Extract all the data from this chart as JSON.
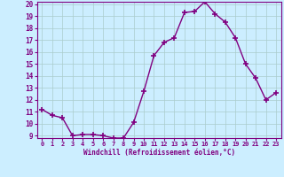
{
  "x": [
    0,
    1,
    2,
    3,
    4,
    5,
    6,
    7,
    8,
    9,
    10,
    11,
    12,
    13,
    14,
    15,
    16,
    17,
    18,
    19,
    20,
    21,
    22,
    23
  ],
  "y": [
    11.2,
    10.7,
    10.5,
    9.0,
    9.1,
    9.1,
    9.0,
    8.8,
    8.8,
    10.1,
    12.7,
    15.7,
    16.8,
    17.2,
    19.3,
    19.4,
    20.2,
    19.2,
    18.5,
    17.2,
    15.0,
    13.8,
    12.0,
    12.6
  ],
  "color": "#800080",
  "bg_color": "#cceeff",
  "grid_color": "#aacccc",
  "xlabel": "Windchill (Refroidissement éolien,°C)",
  "ylim": [
    9,
    20
  ],
  "xlim": [
    -0.5,
    23.5
  ],
  "yticks": [
    9,
    10,
    11,
    12,
    13,
    14,
    15,
    16,
    17,
    18,
    19,
    20
  ],
  "xticks": [
    0,
    1,
    2,
    3,
    4,
    5,
    6,
    7,
    8,
    9,
    10,
    11,
    12,
    13,
    14,
    15,
    16,
    17,
    18,
    19,
    20,
    21,
    22,
    23
  ],
  "marker": "+",
  "markersize": 4,
  "linewidth": 1.0
}
